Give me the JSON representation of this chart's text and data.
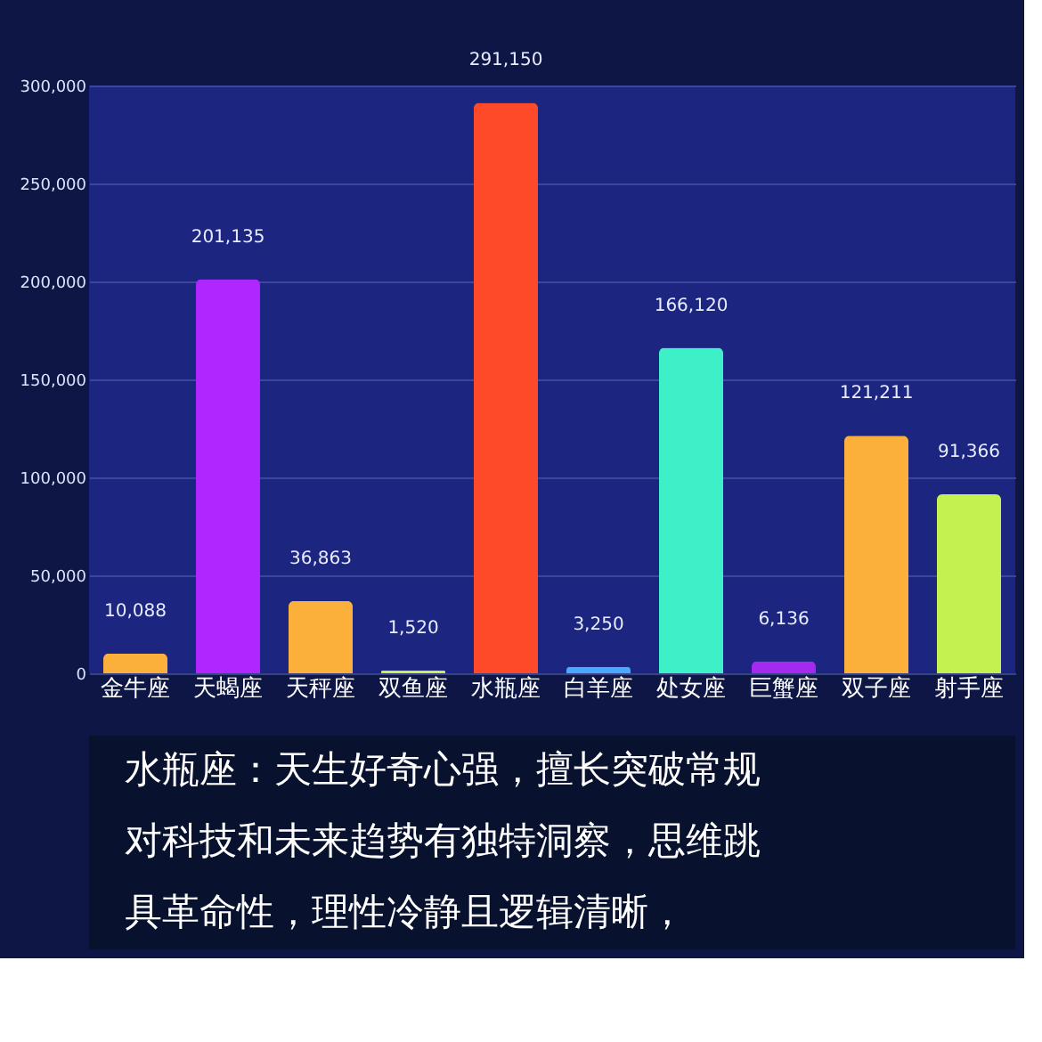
{
  "chart_data": {
    "type": "bar",
    "categories": [
      "金牛座",
      "天蝎座",
      "天秤座",
      "双鱼座",
      "水瓶座",
      "白羊座",
      "处女座",
      "巨蟹座",
      "双子座",
      "射手座"
    ],
    "values": [
      10088,
      201135,
      36863,
      1520,
      291150,
      3250,
      166120,
      6136,
      121211,
      91366
    ],
    "colors": [
      "#fbb03b",
      "#b026ff",
      "#fbb03b",
      "#c8f050",
      "#ff4a2a",
      "#4aa8ff",
      "#3ef0c8",
      "#a52af0",
      "#fbb03b",
      "#c4f050"
    ],
    "ylim": [
      0,
      300000
    ],
    "yticks": [
      0,
      {
        "value": 50000,
        "label": "50,000"
      },
      {
        "value": 100000,
        "label": "100,000"
      },
      {
        "value": 150000,
        "label": "150,000"
      },
      {
        "value": 200000,
        "label": "200,000"
      },
      {
        "value": 250000,
        "label": "250,000"
      },
      {
        "value": 300000,
        "label": "300,000"
      }
    ],
    "grid": "y",
    "value_labels": [
      "10,088",
      "201,135",
      "36,863",
      "1,520",
      "291,150",
      "3,250",
      "166,120",
      "6,136",
      "121,211",
      "91,366"
    ],
    "annotations": [
      "水瓶座：天生好奇心强，擅长突破常规",
      "对科技和未来趋势有独特洞察，思维跳",
      "具革命性，理性冷静且逻辑清晰，"
    ]
  }
}
